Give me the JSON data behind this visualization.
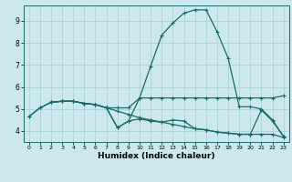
{
  "xlabel": "Humidex (Indice chaleur)",
  "xlim": [
    -0.5,
    23.5
  ],
  "ylim": [
    3.5,
    9.7
  ],
  "yticks": [
    4,
    5,
    6,
    7,
    8,
    9
  ],
  "xticks": [
    0,
    1,
    2,
    3,
    4,
    5,
    6,
    7,
    8,
    9,
    10,
    11,
    12,
    13,
    14,
    15,
    16,
    17,
    18,
    19,
    20,
    21,
    22,
    23
  ],
  "bg_color": "#cce8ec",
  "grid_color": "#a8cdd4",
  "line_color": "#1a6b6b",
  "lines": [
    {
      "x": [
        0,
        1,
        2,
        3,
        4,
        5,
        6,
        7,
        8,
        9,
        10,
        11,
        12,
        13,
        14,
        15,
        16,
        17,
        18,
        19,
        20,
        21,
        22,
        23
      ],
      "y": [
        4.65,
        5.05,
        5.3,
        5.35,
        5.35,
        5.25,
        5.2,
        5.05,
        4.9,
        4.75,
        4.6,
        4.5,
        4.4,
        4.3,
        4.2,
        4.1,
        4.05,
        3.95,
        3.9,
        3.85,
        3.85,
        3.85,
        3.85,
        3.7
      ]
    },
    {
      "x": [
        0,
        1,
        2,
        3,
        4,
        5,
        6,
        7,
        8,
        9,
        10,
        11,
        12,
        13,
        14,
        15,
        16,
        17,
        18,
        19,
        20,
        21,
        22,
        23
      ],
      "y": [
        4.65,
        5.05,
        5.3,
        5.35,
        5.35,
        5.25,
        5.2,
        5.05,
        4.15,
        4.45,
        5.5,
        6.95,
        8.35,
        8.9,
        9.35,
        9.5,
        9.5,
        8.5,
        7.3,
        5.1,
        5.1,
        5.0,
        4.5,
        3.75
      ]
    },
    {
      "x": [
        2,
        3,
        4,
        5,
        6,
        7,
        8,
        9,
        10,
        11,
        12,
        13,
        14,
        15,
        16,
        17,
        18,
        19,
        20,
        21,
        22,
        23
      ],
      "y": [
        5.3,
        5.35,
        5.35,
        5.25,
        5.2,
        5.05,
        5.05,
        5.05,
        5.5,
        5.5,
        5.5,
        5.5,
        5.5,
        5.5,
        5.5,
        5.5,
        5.5,
        5.5,
        5.5,
        5.5,
        5.5,
        5.6
      ]
    },
    {
      "x": [
        2,
        3,
        4,
        5,
        6,
        7,
        8,
        9,
        10,
        11,
        12,
        13,
        14,
        15,
        16,
        17,
        18,
        19,
        20,
        21,
        22,
        23
      ],
      "y": [
        5.3,
        5.35,
        5.35,
        5.25,
        5.2,
        5.05,
        4.15,
        4.45,
        4.55,
        4.45,
        4.4,
        4.5,
        4.45,
        4.1,
        4.05,
        3.95,
        3.9,
        3.85,
        3.85,
        4.95,
        4.45,
        3.75
      ]
    }
  ],
  "marker": "+",
  "markersize": 3.5,
  "linewidth": 0.9
}
